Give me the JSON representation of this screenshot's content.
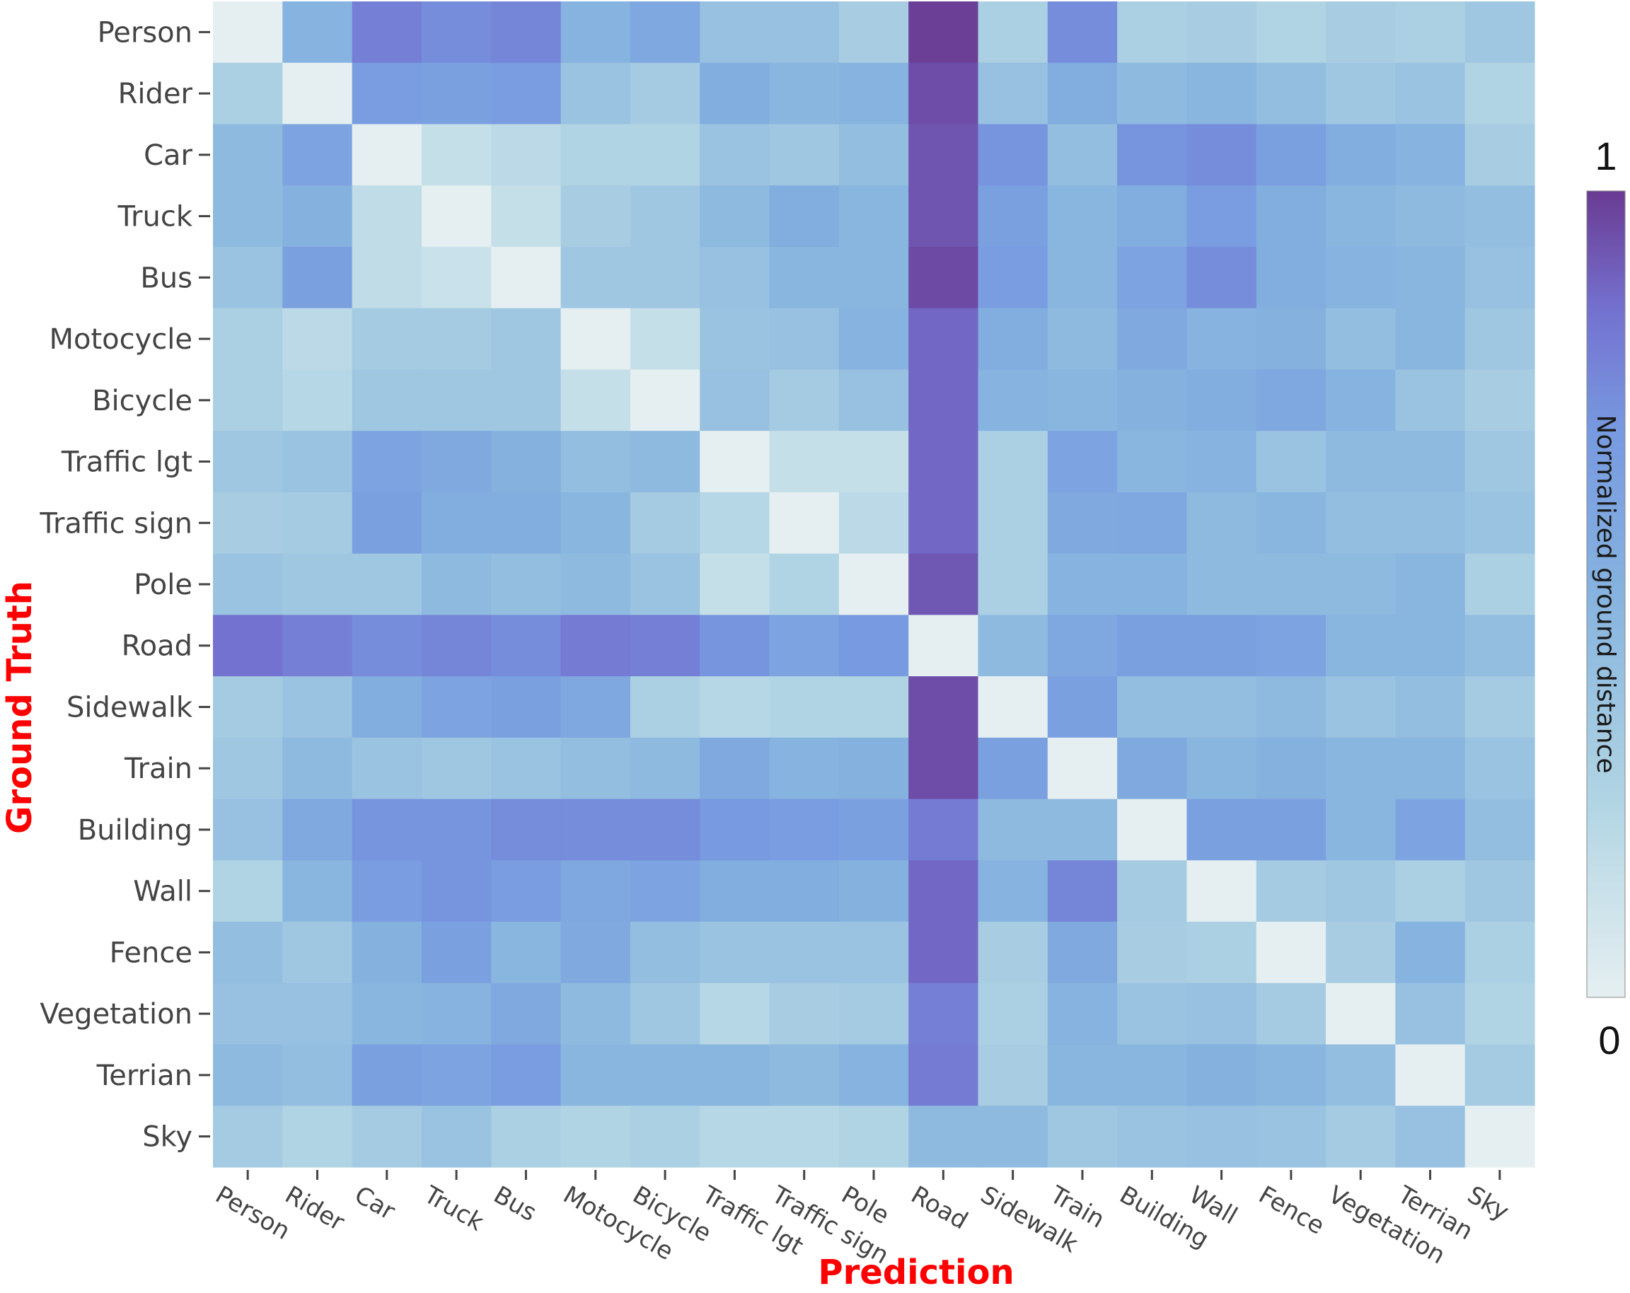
{
  "chart_data": {
    "type": "heatmap",
    "xlabel": "Prediction",
    "ylabel": "Ground Truth",
    "axis_title_color": "#ff0000",
    "x_categories": [
      "Person",
      "Rider",
      "Car",
      "Truck",
      "Bus",
      "Motocycle",
      "Bicycle",
      "Traffic lgt",
      "Traffic sign",
      "Pole",
      "Road",
      "Sidewalk",
      "Train",
      "Building",
      "Wall",
      "Fence",
      "Vegetation",
      "Terrian",
      "Sky"
    ],
    "y_categories": [
      "Person",
      "Rider",
      "Car",
      "Truck",
      "Bus",
      "Motocycle",
      "Bicycle",
      "Traffic lgt",
      "Traffic sign",
      "Pole",
      "Road",
      "Sidewalk",
      "Train",
      "Building",
      "Wall",
      "Fence",
      "Vegetation",
      "Terrian",
      "Sky"
    ],
    "colorbar": {
      "title": "Normalized ground distance",
      "max_label": "1",
      "min_label": "0",
      "range": [
        0,
        1
      ],
      "colorscale": [
        [
          0,
          "#e5eff1"
        ],
        [
          0.25,
          "#b0d4e3"
        ],
        [
          0.5,
          "#86b3df"
        ],
        [
          0.7,
          "#779ae0"
        ],
        [
          0.85,
          "#7472d0"
        ],
        [
          1,
          "#6a3b92"
        ]
      ]
    },
    "values": [
      [
        0.0,
        0.5,
        0.8,
        0.75,
        0.78,
        0.5,
        0.6,
        0.4,
        0.4,
        0.3,
        0.99,
        0.28,
        0.75,
        0.28,
        0.3,
        0.25,
        0.3,
        0.28,
        0.35
      ],
      [
        0.28,
        0.0,
        0.68,
        0.65,
        0.68,
        0.38,
        0.32,
        0.55,
        0.48,
        0.5,
        0.95,
        0.4,
        0.55,
        0.45,
        0.48,
        0.42,
        0.35,
        0.38,
        0.25
      ],
      [
        0.45,
        0.62,
        0.0,
        0.15,
        0.2,
        0.25,
        0.25,
        0.38,
        0.35,
        0.42,
        0.93,
        0.72,
        0.42,
        0.72,
        0.75,
        0.65,
        0.55,
        0.5,
        0.3
      ],
      [
        0.45,
        0.52,
        0.18,
        0.0,
        0.15,
        0.3,
        0.35,
        0.45,
        0.55,
        0.48,
        0.93,
        0.65,
        0.48,
        0.55,
        0.68,
        0.55,
        0.48,
        0.45,
        0.42
      ],
      [
        0.38,
        0.65,
        0.18,
        0.13,
        0.0,
        0.35,
        0.35,
        0.4,
        0.48,
        0.48,
        0.96,
        0.68,
        0.48,
        0.62,
        0.75,
        0.55,
        0.5,
        0.48,
        0.4
      ],
      [
        0.28,
        0.2,
        0.32,
        0.32,
        0.35,
        0.0,
        0.15,
        0.38,
        0.4,
        0.5,
        0.88,
        0.55,
        0.45,
        0.58,
        0.5,
        0.52,
        0.42,
        0.48,
        0.35
      ],
      [
        0.28,
        0.22,
        0.35,
        0.35,
        0.35,
        0.15,
        0.0,
        0.4,
        0.32,
        0.4,
        0.88,
        0.5,
        0.48,
        0.52,
        0.55,
        0.6,
        0.5,
        0.38,
        0.3
      ],
      [
        0.35,
        0.38,
        0.62,
        0.58,
        0.52,
        0.42,
        0.45,
        0.0,
        0.15,
        0.15,
        0.88,
        0.28,
        0.62,
        0.48,
        0.5,
        0.38,
        0.45,
        0.45,
        0.35
      ],
      [
        0.3,
        0.32,
        0.65,
        0.55,
        0.55,
        0.48,
        0.32,
        0.22,
        0.0,
        0.2,
        0.88,
        0.28,
        0.58,
        0.6,
        0.45,
        0.48,
        0.42,
        0.42,
        0.38
      ],
      [
        0.38,
        0.35,
        0.35,
        0.45,
        0.42,
        0.45,
        0.38,
        0.15,
        0.25,
        0.0,
        0.92,
        0.28,
        0.5,
        0.5,
        0.45,
        0.45,
        0.45,
        0.48,
        0.28
      ],
      [
        0.85,
        0.8,
        0.75,
        0.78,
        0.75,
        0.82,
        0.8,
        0.72,
        0.62,
        0.7,
        0.0,
        0.45,
        0.6,
        0.65,
        0.65,
        0.62,
        0.48,
        0.48,
        0.42
      ],
      [
        0.32,
        0.38,
        0.55,
        0.62,
        0.65,
        0.6,
        0.28,
        0.22,
        0.25,
        0.25,
        0.95,
        0.0,
        0.65,
        0.42,
        0.42,
        0.45,
        0.38,
        0.42,
        0.32
      ],
      [
        0.35,
        0.45,
        0.38,
        0.35,
        0.38,
        0.42,
        0.45,
        0.58,
        0.5,
        0.52,
        0.95,
        0.65,
        0.0,
        0.58,
        0.48,
        0.52,
        0.48,
        0.48,
        0.38
      ],
      [
        0.4,
        0.58,
        0.72,
        0.72,
        0.75,
        0.75,
        0.75,
        0.7,
        0.68,
        0.65,
        0.82,
        0.45,
        0.45,
        0.0,
        0.65,
        0.65,
        0.48,
        0.62,
        0.42
      ],
      [
        0.25,
        0.48,
        0.68,
        0.72,
        0.68,
        0.6,
        0.62,
        0.55,
        0.55,
        0.52,
        0.88,
        0.5,
        0.78,
        0.32,
        0.0,
        0.32,
        0.35,
        0.28,
        0.35
      ],
      [
        0.42,
        0.35,
        0.52,
        0.65,
        0.48,
        0.58,
        0.42,
        0.38,
        0.38,
        0.38,
        0.88,
        0.3,
        0.58,
        0.3,
        0.28,
        0.0,
        0.3,
        0.5,
        0.28
      ],
      [
        0.4,
        0.4,
        0.48,
        0.5,
        0.58,
        0.45,
        0.35,
        0.22,
        0.3,
        0.32,
        0.8,
        0.28,
        0.5,
        0.38,
        0.4,
        0.32,
        0.0,
        0.4,
        0.25
      ],
      [
        0.45,
        0.42,
        0.65,
        0.62,
        0.68,
        0.48,
        0.48,
        0.48,
        0.45,
        0.5,
        0.82,
        0.3,
        0.48,
        0.48,
        0.52,
        0.48,
        0.42,
        0.0,
        0.32
      ],
      [
        0.32,
        0.25,
        0.32,
        0.38,
        0.28,
        0.25,
        0.28,
        0.22,
        0.22,
        0.25,
        0.45,
        0.45,
        0.35,
        0.38,
        0.4,
        0.38,
        0.32,
        0.4,
        0.0
      ]
    ]
  }
}
